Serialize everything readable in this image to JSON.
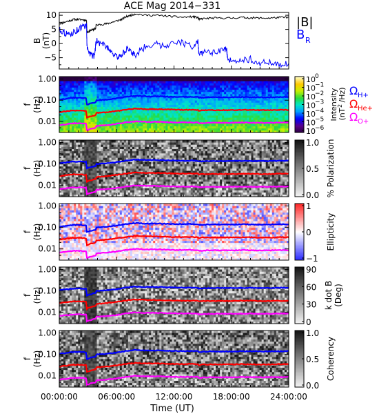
{
  "figure": {
    "title": "ACE Mag 2014−331",
    "xlabel": "Time (UT)",
    "xticks": [
      "00:00:00",
      "06:00:00",
      "12:00:00",
      "18:00:00",
      "24:00:00"
    ]
  },
  "legends": {
    "panel1": [
      {
        "text": "|B|",
        "color": "#000000"
      },
      {
        "text": "B",
        "sub": "R",
        "color": "#0000ff"
      }
    ],
    "panel2": [
      {
        "text": "Ω",
        "sub": "H+",
        "color": "#0000ff"
      },
      {
        "text": "Ω",
        "sub": "He+",
        "color": "#ff0000"
      },
      {
        "text": "Ω",
        "sub": "O+",
        "color": "#ff00ff"
      }
    ]
  },
  "colorbars": {
    "intensity": {
      "label": "Intensity",
      "unit_prefix": "(nT",
      "unit_sup": "2",
      "unit_suffix": "/Hz)",
      "ticks": [
        {
          "base": "10",
          "exp": "0"
        },
        {
          "base": "10",
          "exp": "−1"
        },
        {
          "base": "10",
          "exp": "−2"
        },
        {
          "base": "10",
          "exp": "−3"
        },
        {
          "base": "10",
          "exp": "−4"
        },
        {
          "base": "10",
          "exp": "−5"
        },
        {
          "base": "10",
          "exp": "−6"
        }
      ]
    },
    "polarization": {
      "label": "% Polarization",
      "ticks": [
        "1.0",
        "0.5",
        "0.0"
      ]
    },
    "ellipticity": {
      "label": "Ellipticity",
      "ticks": [
        "1",
        "0",
        "−1"
      ]
    },
    "kdotb": {
      "label": "k dot B",
      "label2": "(Deg)",
      "ticks": [
        "90",
        "60",
        "30",
        "0"
      ]
    },
    "coherency": {
      "label": "Coherency",
      "ticks": [
        "1.0",
        "0.5",
        "0.0"
      ]
    }
  },
  "chart_data": [
    {
      "type": "line",
      "ylabel": "B",
      "yunit": "(nT)",
      "xlim": [
        0,
        24
      ],
      "ylim": [
        -9,
        11
      ],
      "yticks": [
        "10",
        "5",
        "0",
        "−5"
      ],
      "series": [
        {
          "name": "|B|",
          "color": "#000000",
          "x": [
            0,
            0.5,
            1,
            1.5,
            2,
            2.5,
            2.85,
            2.9,
            3.2,
            3.6,
            3.8,
            3.85,
            4.5,
            5,
            5.5,
            6,
            6.5,
            7,
            7.5,
            8,
            9,
            10,
            11,
            12,
            13,
            14,
            14.5,
            14.6,
            15,
            16,
            17,
            18,
            19,
            20,
            21,
            22,
            23,
            24
          ],
          "y": [
            7,
            7.5,
            8,
            8.5,
            8.5,
            8.4,
            8.2,
            4,
            4.5,
            5,
            5.2,
            6.5,
            6.8,
            7,
            7.5,
            8,
            8.5,
            9.5,
            10,
            10.5,
            10,
            10,
            9.8,
            9.5,
            9.3,
            9.5,
            9.2,
            8.5,
            8.8,
            9,
            9,
            9,
            9.2,
            9.1,
            9,
            9,
            9.2,
            9.3
          ]
        },
        {
          "name": "B_R",
          "color": "#0000ff",
          "x": [
            0,
            0.5,
            1,
            1.5,
            2,
            2.5,
            2.85,
            2.9,
            3.3,
            3.7,
            3.85,
            4.3,
            5,
            5.5,
            6,
            6.5,
            7,
            7.5,
            8,
            9,
            10,
            11,
            12,
            13,
            14,
            14.5,
            14.6,
            15,
            16,
            17,
            17.5,
            17.6,
            18,
            19,
            20,
            21,
            22,
            23,
            24
          ],
          "y": [
            5,
            4,
            3,
            4,
            5,
            6,
            6.5,
            -1,
            -4,
            -4.5,
            1,
            0,
            -1,
            -3,
            -5,
            -4,
            -2,
            -3,
            -4,
            -1,
            0,
            -1,
            1,
            0,
            -1,
            0.5,
            -4,
            -3,
            -3.5,
            -2.5,
            -2,
            -6,
            -5.5,
            -6,
            -5.5,
            -7,
            -6.5,
            -7.5,
            -7
          ]
        }
      ]
    },
    {
      "type": "heatmap",
      "title": "Intensity",
      "ylabel": "f",
      "yunit": "(Hz)",
      "yscale": "log",
      "ylim": [
        0.003,
        1.3
      ],
      "yticks": [
        "1.00",
        "0.10",
        "0.01"
      ],
      "xlim": [
        0,
        24
      ],
      "clim": [
        -6,
        0
      ],
      "overlay_lines": "ion_cyclotron"
    },
    {
      "type": "heatmap",
      "title": "% Polarization",
      "ylabel": "f",
      "yunit": "(Hz)",
      "yscale": "log",
      "ylim": [
        0.003,
        1.3
      ],
      "yticks": [
        "1.00",
        "0.10",
        "0.01"
      ],
      "xlim": [
        0,
        24
      ],
      "clim": [
        0,
        1
      ],
      "overlay_lines": "ion_cyclotron"
    },
    {
      "type": "heatmap",
      "title": "Ellipticity",
      "ylabel": "f",
      "yunit": "(Hz)",
      "yscale": "log",
      "ylim": [
        0.003,
        1.3
      ],
      "yticks": [
        "1.00",
        "0.10",
        "0.01"
      ],
      "xlim": [
        0,
        24
      ],
      "clim": [
        -1,
        1
      ],
      "overlay_lines": "ion_cyclotron"
    },
    {
      "type": "heatmap",
      "title": "k dot B",
      "ylabel": "f",
      "yunit": "(Hz)",
      "yscale": "log",
      "ylim": [
        0.003,
        1.3
      ],
      "yticks": [
        "1.00",
        "0.10",
        "0.01"
      ],
      "xlim": [
        0,
        24
      ],
      "clim": [
        0,
        90
      ],
      "overlay_lines": "ion_cyclotron"
    },
    {
      "type": "heatmap",
      "title": "Coherency",
      "ylabel": "f",
      "yunit": "(Hz)",
      "yscale": "log",
      "ylim": [
        0.003,
        1.3
      ],
      "yticks": [
        "1.00",
        "0.10",
        "0.01"
      ],
      "xlim": [
        0,
        24
      ],
      "clim": [
        0,
        1
      ],
      "overlay_lines": "ion_cyclotron"
    }
  ],
  "ion_cyclotron": {
    "x": [
      0,
      0.5,
      1,
      1.5,
      2,
      2.5,
      2.85,
      2.9,
      3.2,
      3.6,
      3.8,
      3.85,
      4.5,
      5,
      5.5,
      6,
      6.5,
      7,
      7.5,
      8,
      9,
      10,
      11,
      12,
      13,
      14,
      14.5,
      14.6,
      15,
      16,
      17,
      18,
      19,
      20,
      21,
      22,
      23,
      24
    ],
    "H+": [
      0.107,
      0.114,
      0.122,
      0.13,
      0.13,
      0.128,
      0.125,
      0.061,
      0.069,
      0.076,
      0.079,
      0.099,
      0.104,
      0.107,
      0.114,
      0.122,
      0.13,
      0.145,
      0.152,
      0.16,
      0.152,
      0.152,
      0.149,
      0.145,
      0.142,
      0.145,
      0.14,
      0.13,
      0.134,
      0.137,
      0.137,
      0.137,
      0.14,
      0.139,
      0.137,
      0.137,
      0.14,
      0.142
    ],
    "He+": [
      0.027,
      0.029,
      0.031,
      0.033,
      0.033,
      0.032,
      0.031,
      0.015,
      0.017,
      0.019,
      0.02,
      0.025,
      0.026,
      0.027,
      0.029,
      0.031,
      0.033,
      0.036,
      0.038,
      0.04,
      0.038,
      0.038,
      0.037,
      0.036,
      0.035,
      0.036,
      0.035,
      0.032,
      0.034,
      0.034,
      0.034,
      0.034,
      0.035,
      0.035,
      0.034,
      0.034,
      0.035,
      0.035
    ],
    "O+": [
      0.0067,
      0.0071,
      0.0076,
      0.0081,
      0.0081,
      0.008,
      0.0078,
      0.0038,
      0.0043,
      0.0048,
      0.005,
      0.0062,
      0.0065,
      0.0067,
      0.0071,
      0.0076,
      0.0081,
      0.009,
      0.0095,
      0.01,
      0.0095,
      0.0095,
      0.0093,
      0.009,
      0.0089,
      0.009,
      0.0088,
      0.0081,
      0.0084,
      0.0086,
      0.0086,
      0.0086,
      0.0088,
      0.0087,
      0.0086,
      0.0086,
      0.0088,
      0.0089
    ]
  },
  "colors": {
    "H+": "#0000ff",
    "He+": "#ff0000",
    "O+": "#ff00ff"
  }
}
